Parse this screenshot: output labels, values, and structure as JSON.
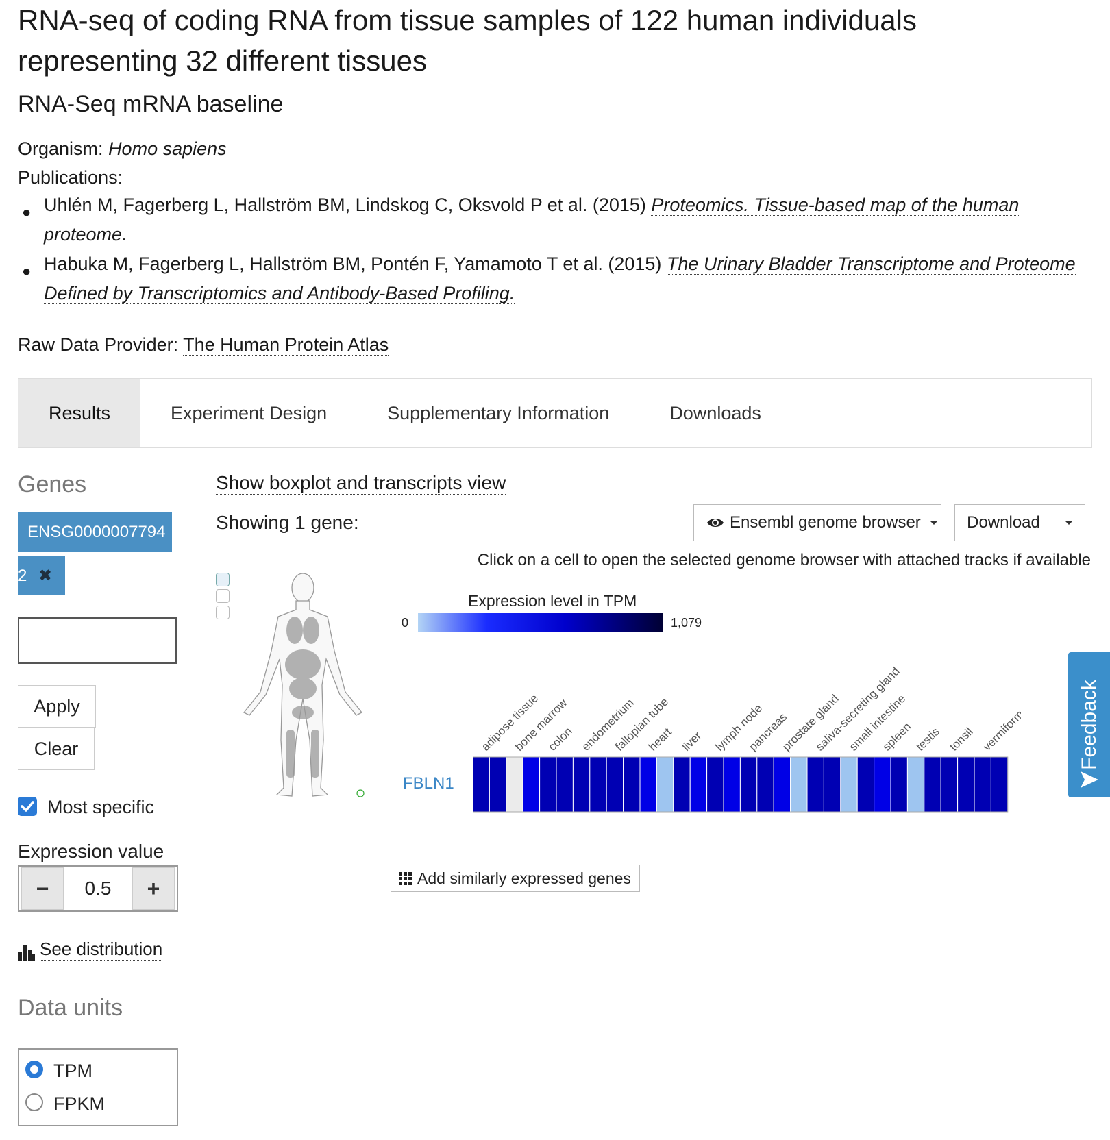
{
  "header": {
    "title": "RNA-seq of coding RNA from tissue samples of 122 human individuals representing 32 different tissues",
    "subtitle": "RNA-Seq mRNA baseline",
    "organism_label": "Organism:",
    "organism_value": "Homo sapiens",
    "publications_label": "Publications:",
    "publications": [
      {
        "authors": "Uhlén M, Fagerberg L, Hallström BM, Lindskog C, Oksvold P et al. (2015)",
        "title": "Proteomics. Tissue-based map of the human proteome."
      },
      {
        "authors": "Habuka M, Fagerberg L, Hallström BM, Pontén F, Yamamoto T et al. (2015)",
        "title": "The Urinary Bladder Transcriptome and Proteome Defined by Transcriptomics and Antibody-Based Profiling."
      }
    ],
    "provider_label": "Raw Data Provider:",
    "provider_value": "The Human Protein Atlas"
  },
  "tabs": [
    {
      "label": "Results",
      "active": true
    },
    {
      "label": "Experiment Design",
      "active": false
    },
    {
      "label": "Supplementary Information",
      "active": false
    },
    {
      "label": "Downloads",
      "active": false
    }
  ],
  "sidebar": {
    "genes_heading": "Genes",
    "gene_tag_line1": "ENSG0000007794",
    "gene_tag_line2": "2",
    "gene_tag_remove": "✖",
    "apply_label": "Apply",
    "clear_label": "Clear",
    "most_specific_label": "Most specific",
    "most_specific_checked": true,
    "expression_value_label": "Expression value",
    "expression_value": "0.5",
    "minus_label": "−",
    "plus_label": "+",
    "see_distribution_label": "See distribution",
    "data_units_heading": "Data units",
    "units": [
      {
        "label": "TPM",
        "selected": true
      },
      {
        "label": "FPKM",
        "selected": false
      }
    ]
  },
  "results": {
    "boxplot_link": "Show boxplot and transcripts view",
    "showing_text": "Showing 1 gene:",
    "genome_browser_button": "Ensembl genome browser",
    "download_button": "Download",
    "click_hint": "Click on a cell to open the selected genome browser with attached tracks if available",
    "add_similar_button": "Add similarly expressed genes",
    "feedback_label": "Feedback",
    "legend_title": "Expression level in TPM",
    "legend_min": "0",
    "legend_max": "1,079",
    "gene_row_label": "FBLN1"
  },
  "colors": {
    "accent": "#4a90c4",
    "tab_active_bg": "#e8e8e8",
    "heat_high": "#00008b",
    "heat_mid": "#0000e6",
    "heat_low": "#9ec5f0",
    "heat_na": "#ebebeb"
  },
  "heatmap": {
    "column_labels": [
      "adipose tissue",
      "bone marrow",
      "colon",
      "endometrium",
      "fallopian tube",
      "heart",
      "liver",
      "lymph node",
      "pancreas",
      "prostate gland",
      "saliva-secreting gland",
      "small intestine",
      "spleen",
      "testis",
      "tonsil",
      "vermiform appendix"
    ],
    "cells": [
      "#0000b3",
      "#0000b3",
      "#ebebeb",
      "#0000e6",
      "#0000b3",
      "#0000b3",
      "#0000b3",
      "#0000b3",
      "#0000b3",
      "#0000b3",
      "#0000e6",
      "#9ec5f0",
      "#0000b3",
      "#0000e6",
      "#0000b3",
      "#0000e6",
      "#0000b3",
      "#0000b3",
      "#0000e6",
      "#9ec5f0",
      "#0000b3",
      "#0000b3",
      "#9ec5f0",
      "#0000b3",
      "#0000e6",
      "#0000b3",
      "#9ec5f0",
      "#0000b3",
      "#0000b3",
      "#0000b3",
      "#0000b3",
      "#0000b3"
    ]
  },
  "icons": {
    "eye": "eye-icon",
    "caret": "caret-down-icon",
    "grid": "grid-icon",
    "bar_chart": "bar-chart-icon",
    "feedback": "send-icon",
    "anatomogram": "human-body-icon"
  }
}
